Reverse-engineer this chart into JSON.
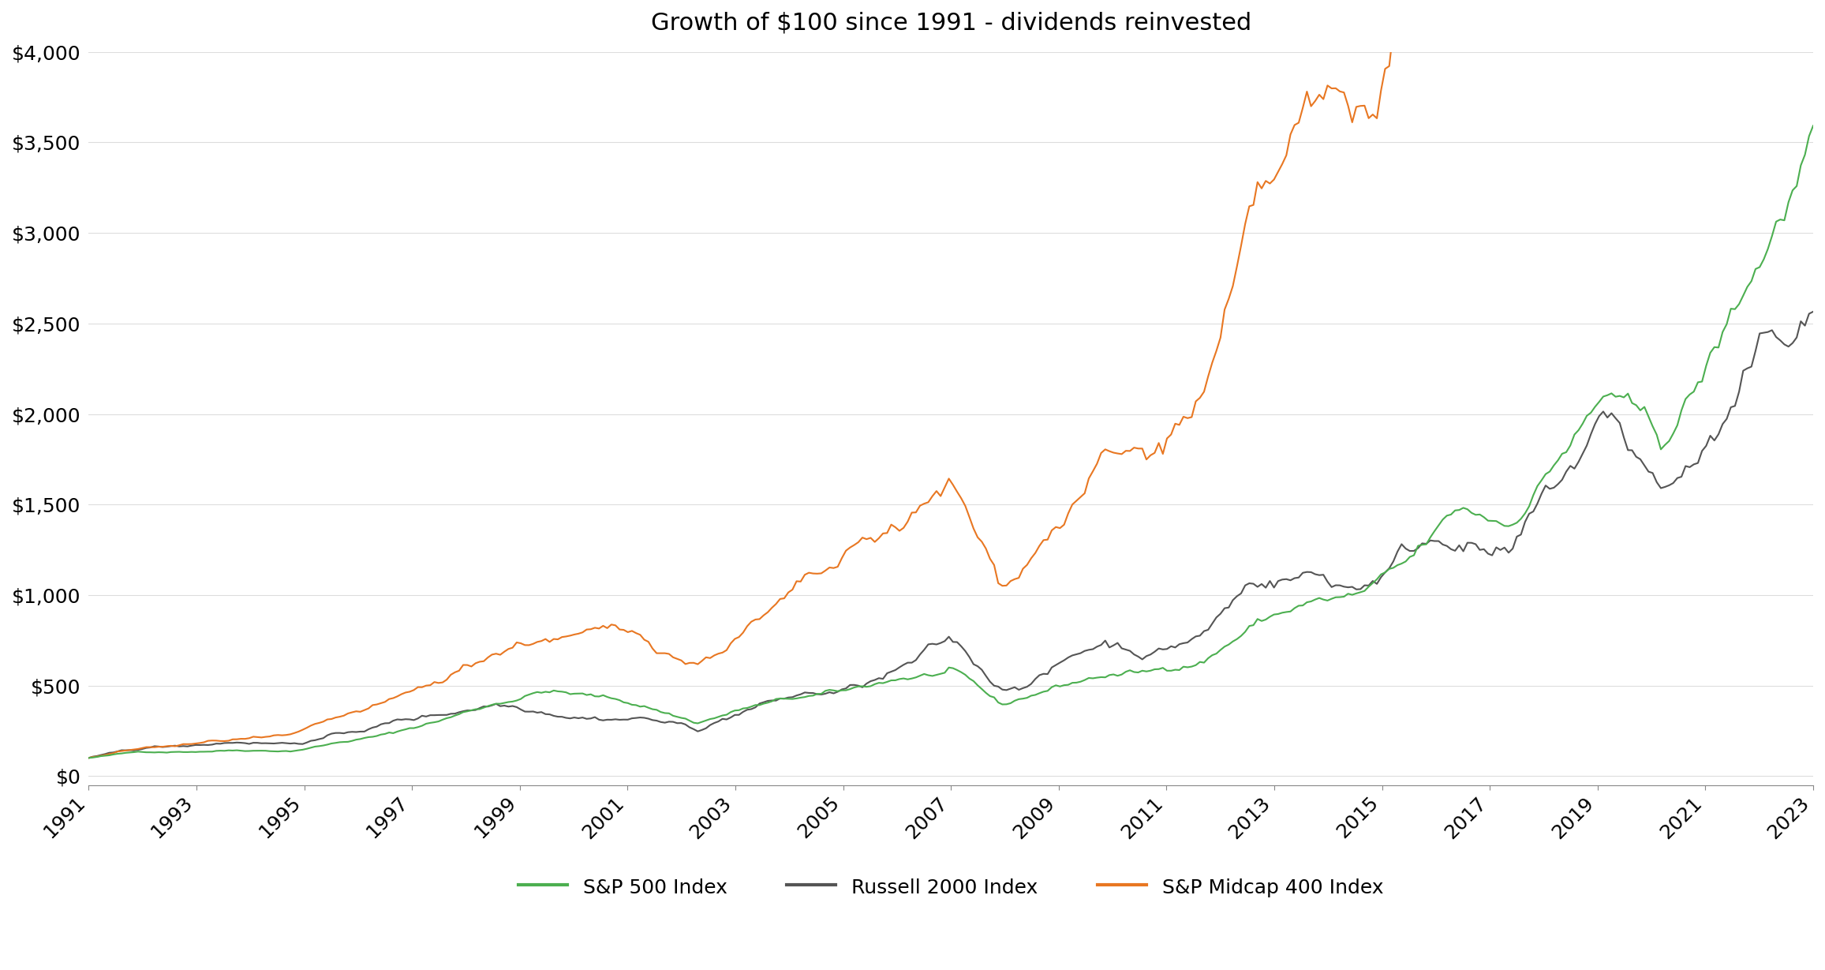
{
  "title": "Growth of $100 since 1991 - dividends reinvested",
  "title_fontsize": 22,
  "colors": {
    "sp500": "#4CAF50",
    "russell2000": "#555555",
    "sp_midcap400": "#E87722"
  },
  "legend_labels": [
    "S&P 500 Index",
    "Russell 2000 Index",
    "S&P Midcap 400 Index"
  ],
  "yticks": [
    0,
    500,
    1000,
    1500,
    2000,
    2500,
    3000,
    3500,
    4000
  ],
  "ytick_labels": [
    "$0",
    "$500",
    "$1,000",
    "$1,500",
    "$2,000",
    "$2,500",
    "$3,000",
    "$3,500",
    "$4,000"
  ],
  "xtick_labels": [
    "1991",
    "1993",
    "1995",
    "1997",
    "1999",
    "2001",
    "2003",
    "2005",
    "2007",
    "2009",
    "2011",
    "2013",
    "2015",
    "2017",
    "2019",
    "2021",
    "2023"
  ],
  "ylim": [
    -50,
    4000
  ],
  "background_color": "#ffffff",
  "line_width": 1.5
}
